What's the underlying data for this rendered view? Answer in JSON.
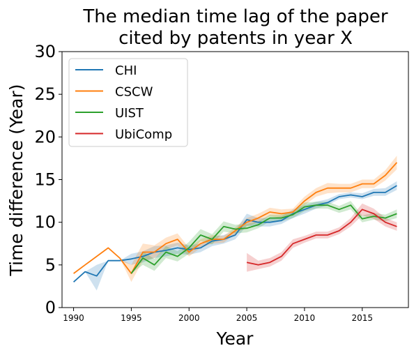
{
  "chart_data": {
    "type": "line",
    "title": [
      "The median time lag of the paper",
      "cited by patents in year X"
    ],
    "xlabel": "Year",
    "ylabel": "Time difference (Year)",
    "xlim": [
      1989,
      2019
    ],
    "ylim": [
      0,
      30
    ],
    "xticks": [
      1990,
      1995,
      2000,
      2005,
      2010,
      2015
    ],
    "yticks": [
      0,
      5,
      10,
      15,
      20,
      25,
      30
    ],
    "grid": false,
    "legend_position": "top-left",
    "series": [
      {
        "name": "CHI",
        "color": "#1f77b4",
        "x": [
          1990,
          1991,
          1992,
          1993,
          1994,
          1995,
          1996,
          1997,
          1998,
          1999,
          2000,
          2001,
          2002,
          2003,
          2004,
          2005,
          2006,
          2007,
          2008,
          2009,
          2010,
          2011,
          2012,
          2013,
          2014,
          2015,
          2016,
          2017,
          2018
        ],
        "values": [
          3.0,
          4.2,
          3.7,
          5.5,
          5.5,
          5.7,
          6.0,
          6.5,
          6.7,
          7.0,
          6.8,
          7.0,
          7.8,
          8.0,
          8.5,
          10.3,
          10.0,
          10.0,
          10.2,
          11.0,
          11.5,
          12.0,
          12.3,
          13.0,
          13.2,
          13.0,
          13.5,
          13.5,
          14.3
        ],
        "ci_lower": [
          3.0,
          4.2,
          2.0,
          5.5,
          5.5,
          5.0,
          5.3,
          5.8,
          6.0,
          6.3,
          6.2,
          6.5,
          7.2,
          7.5,
          8.0,
          9.6,
          9.5,
          9.5,
          9.8,
          10.5,
          11.0,
          11.6,
          12.0,
          12.7,
          12.9,
          12.7,
          13.1,
          13.1,
          13.8
        ],
        "ci_upper": [
          3.0,
          4.2,
          5.0,
          5.5,
          5.5,
          6.3,
          6.6,
          7.2,
          7.3,
          7.6,
          7.3,
          7.5,
          8.3,
          8.5,
          9.0,
          11.0,
          10.5,
          10.5,
          10.7,
          11.5,
          12.0,
          12.4,
          12.7,
          13.3,
          13.5,
          13.4,
          13.9,
          14.0,
          14.8
        ]
      },
      {
        "name": "CSCW",
        "color": "#ff7f0e",
        "x": [
          1990,
          1991,
          1992,
          1993,
          1994,
          1995,
          1996,
          1997,
          1998,
          1999,
          2000,
          2001,
          2002,
          2003,
          2004,
          2005,
          2006,
          2007,
          2008,
          2009,
          2010,
          2011,
          2012,
          2013,
          2014,
          2015,
          2016,
          2017,
          2018
        ],
        "values": [
          4.0,
          5.0,
          6.0,
          7.0,
          5.8,
          4.0,
          6.5,
          6.5,
          7.5,
          8.0,
          6.5,
          7.5,
          8.0,
          8.0,
          9.0,
          10.0,
          10.5,
          11.2,
          11.0,
          11.2,
          12.5,
          13.5,
          14.0,
          14.0,
          14.0,
          14.5,
          14.5,
          15.5,
          17.0
        ],
        "ci_lower": [
          4.0,
          5.0,
          6.0,
          7.0,
          5.8,
          3.0,
          5.5,
          5.8,
          6.8,
          7.3,
          6.0,
          7.0,
          7.5,
          7.6,
          8.6,
          9.5,
          10.0,
          10.7,
          10.5,
          10.8,
          12.0,
          13.0,
          13.4,
          13.5,
          13.5,
          14.0,
          14.0,
          14.9,
          16.2
        ],
        "ci_upper": [
          4.0,
          5.0,
          6.0,
          7.0,
          5.8,
          5.0,
          7.5,
          7.3,
          8.2,
          8.7,
          7.0,
          8.0,
          8.5,
          8.4,
          9.4,
          10.5,
          11.0,
          11.7,
          11.5,
          11.6,
          13.0,
          14.0,
          14.6,
          14.5,
          14.5,
          15.0,
          15.0,
          16.1,
          17.8
        ]
      },
      {
        "name": "UIST",
        "color": "#2ca02c",
        "x": [
          1995,
          1996,
          1997,
          1998,
          1999,
          2000,
          2001,
          2002,
          2003,
          2004,
          2005,
          2006,
          2007,
          2008,
          2009,
          2010,
          2011,
          2012,
          2013,
          2014,
          2015,
          2016,
          2017,
          2018
        ],
        "values": [
          4.0,
          5.8,
          5.0,
          6.5,
          6.0,
          7.0,
          8.5,
          8.0,
          9.5,
          9.2,
          9.3,
          9.7,
          10.5,
          10.5,
          10.9,
          11.8,
          12.0,
          12.0,
          11.5,
          12.0,
          10.4,
          10.7,
          10.5,
          11.0
        ],
        "ci_lower": [
          4.0,
          5.0,
          4.3,
          5.8,
          5.4,
          6.3,
          7.8,
          7.4,
          8.9,
          8.7,
          8.8,
          9.3,
          10.1,
          10.1,
          10.5,
          11.3,
          11.6,
          11.6,
          11.1,
          11.5,
          10.0,
          10.3,
          10.1,
          10.5
        ],
        "ci_upper": [
          4.0,
          6.6,
          5.7,
          7.2,
          6.6,
          7.7,
          9.2,
          8.6,
          10.1,
          9.7,
          9.8,
          10.1,
          10.9,
          10.9,
          11.3,
          12.3,
          12.4,
          12.4,
          11.9,
          12.5,
          10.8,
          11.1,
          10.9,
          11.5
        ]
      },
      {
        "name": "UbiComp",
        "color": "#d62728",
        "x": [
          2005,
          2006,
          2007,
          2008,
          2009,
          2010,
          2011,
          2012,
          2013,
          2014,
          2015,
          2016,
          2017,
          2018
        ],
        "values": [
          5.3,
          5.0,
          5.3,
          6.0,
          7.5,
          8.0,
          8.5,
          8.5,
          9.0,
          10.0,
          11.5,
          11.0,
          10.0,
          9.5
        ],
        "ci_lower": [
          4.2,
          4.5,
          4.8,
          5.5,
          7.0,
          7.6,
          8.1,
          8.1,
          8.6,
          9.5,
          10.8,
          10.4,
          9.5,
          9.0
        ],
        "ci_upper": [
          6.4,
          5.5,
          5.8,
          6.5,
          8.0,
          8.4,
          8.9,
          8.9,
          9.4,
          10.5,
          12.2,
          11.6,
          10.5,
          10.0
        ]
      }
    ]
  }
}
